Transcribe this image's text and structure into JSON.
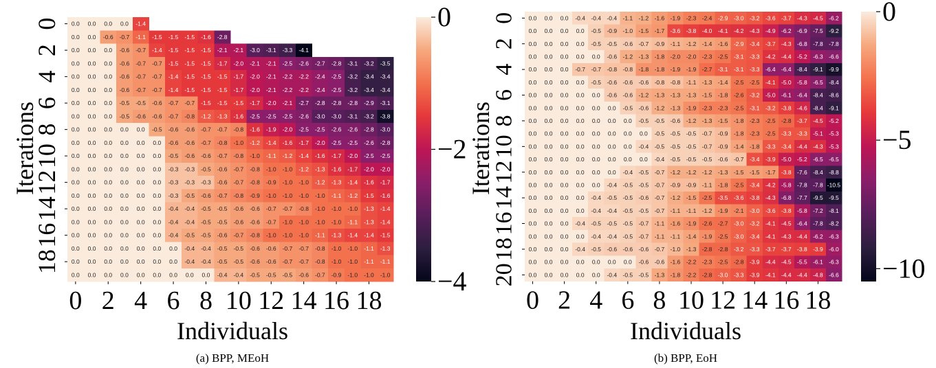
{
  "chart_data": [
    {
      "type": "heatmap",
      "caption": "(a) BPP, MEoH",
      "xlabel": "Individuals",
      "ylabel": "Iterations",
      "x_tick_labels": [
        "0",
        "2",
        "4",
        "6",
        "8",
        "10",
        "12",
        "14",
        "16",
        "18"
      ],
      "y_tick_labels": [
        "0",
        "2",
        "4",
        "6",
        "8",
        "10",
        "12",
        "14",
        "16",
        "18"
      ],
      "colorbar": {
        "min": -4.0,
        "max": 0.0,
        "ticks": [
          "0",
          "−2",
          "−4"
        ],
        "tick_values": [
          0,
          -2,
          -4
        ]
      },
      "values": [
        [
          0.0,
          0.0,
          0.0,
          0.0,
          -1.4,
          null,
          null,
          null,
          null,
          null,
          null,
          null,
          null,
          null,
          null,
          null,
          null,
          null,
          null,
          null
        ],
        [
          0.0,
          0.0,
          -0.6,
          -0.7,
          -1.1,
          -1.5,
          -1.5,
          -1.5,
          -1.6,
          -2.8,
          null,
          null,
          null,
          null,
          null,
          null,
          null,
          null,
          null,
          null
        ],
        [
          0.0,
          0.0,
          0.0,
          -0.6,
          -0.7,
          -1.4,
          -1.5,
          -1.5,
          -1.5,
          -2.1,
          -2.1,
          -3.0,
          -3.1,
          -3.3,
          -4.1,
          null,
          null,
          null,
          null,
          null
        ],
        [
          0.0,
          0.0,
          0.0,
          -0.6,
          -0.7,
          -0.7,
          -1.5,
          -1.5,
          -1.5,
          -1.7,
          -2.0,
          -2.1,
          -2.1,
          -2.5,
          -2.6,
          -2.7,
          -2.8,
          -3.1,
          -3.2,
          -3.5
        ],
        [
          0.0,
          0.0,
          0.0,
          -0.6,
          -0.7,
          -0.7,
          -1.4,
          -1.5,
          -1.5,
          -1.5,
          -1.7,
          -2.0,
          -2.1,
          -2.2,
          -2.2,
          -2.4,
          -2.5,
          -3.2,
          -3.4,
          -3.4
        ],
        [
          0.0,
          0.0,
          0.0,
          -0.6,
          -0.7,
          -0.7,
          -1.4,
          -1.5,
          -1.5,
          -1.5,
          -1.7,
          -2.0,
          -2.1,
          -2.2,
          -2.2,
          -2.4,
          -2.5,
          -3.2,
          -3.4,
          -3.4
        ],
        [
          0.0,
          0.0,
          0.0,
          -0.5,
          -0.5,
          -0.6,
          -0.7,
          -0.7,
          -1.5,
          -1.5,
          -1.5,
          -1.7,
          -2.0,
          -2.1,
          -2.7,
          -2.8,
          -2.8,
          -2.8,
          -2.9,
          -3.1
        ],
        [
          0.0,
          0.0,
          0.0,
          -0.5,
          -0.6,
          -0.6,
          -0.7,
          -0.8,
          -1.2,
          -1.3,
          -1.6,
          -2.5,
          -2.5,
          -2.5,
          -2.6,
          -3.0,
          -3.0,
          -3.1,
          -3.2,
          -3.8
        ],
        [
          0.0,
          0.0,
          0.0,
          0.0,
          0.0,
          -0.5,
          -0.6,
          -0.6,
          -0.7,
          -0.7,
          -0.8,
          -1.6,
          -1.9,
          -2.0,
          -2.5,
          -2.5,
          -2.6,
          -2.6,
          -2.8,
          -3.0
        ],
        [
          0.0,
          0.0,
          0.0,
          0.0,
          0.0,
          0.0,
          -0.6,
          -0.6,
          -0.7,
          -0.8,
          -1.0,
          -1.2,
          -1.4,
          -1.6,
          -1.7,
          -2.0,
          -2.5,
          -2.5,
          -2.6,
          -2.8
        ],
        [
          0.0,
          0.0,
          0.0,
          0.0,
          0.0,
          0.0,
          -0.5,
          -0.6,
          -0.6,
          -0.7,
          -0.8,
          -1.0,
          -1.1,
          -1.2,
          -1.4,
          -1.6,
          -1.7,
          -2.0,
          -2.5,
          -2.5
        ],
        [
          0.0,
          0.0,
          0.0,
          0.0,
          0.0,
          0.0,
          -0.3,
          -0.3,
          -0.5,
          -0.6,
          -0.7,
          -0.8,
          -1.0,
          -1.0,
          -1.2,
          -1.3,
          -1.6,
          -1.7,
          -2.0,
          -2.0
        ],
        [
          0.0,
          0.0,
          0.0,
          0.0,
          0.0,
          0.0,
          -0.3,
          -0.3,
          -0.3,
          -0.6,
          -0.7,
          -0.8,
          -0.9,
          -1.0,
          -1.0,
          -1.2,
          -1.3,
          -1.4,
          -1.6,
          -1.7
        ],
        [
          0.0,
          0.0,
          0.0,
          0.0,
          0.0,
          0.0,
          -0.3,
          -0.5,
          -0.6,
          -0.7,
          -0.8,
          -0.9,
          -1.0,
          -1.0,
          -1.0,
          -1.0,
          -1.1,
          -1.2,
          -1.5,
          -1.6
        ],
        [
          0.0,
          0.0,
          0.0,
          0.0,
          0.0,
          0.0,
          -0.4,
          -0.4,
          -0.5,
          -0.5,
          -0.6,
          -0.6,
          -0.7,
          -0.7,
          -0.8,
          -1.0,
          -1.0,
          -1.0,
          -1.3,
          -1.4
        ],
        [
          0.0,
          0.0,
          0.0,
          0.0,
          0.0,
          0.0,
          -0.4,
          -0.4,
          -0.5,
          -0.5,
          -0.6,
          -0.6,
          -0.7,
          -1.0,
          -1.0,
          -1.0,
          -1.0,
          -1.1,
          -1.3,
          -1.4
        ],
        [
          0.0,
          0.0,
          0.0,
          0.0,
          0.0,
          0.0,
          -0.4,
          -0.5,
          -0.5,
          -0.6,
          -0.7,
          -0.8,
          -1.0,
          -1.0,
          -1.0,
          -1.1,
          -1.3,
          -1.4,
          -1.4,
          -1.5
        ],
        [
          0.0,
          0.0,
          0.0,
          0.0,
          0.0,
          0.0,
          0.0,
          -0.4,
          -0.4,
          -0.5,
          -0.5,
          -0.6,
          -0.6,
          -0.7,
          -0.7,
          -0.8,
          -1.0,
          -1.0,
          -1.1,
          -1.3
        ],
        [
          0.0,
          0.0,
          0.0,
          0.0,
          0.0,
          0.0,
          0.0,
          -0.4,
          -0.4,
          -0.5,
          -0.5,
          -0.6,
          -0.6,
          -0.7,
          -0.7,
          -0.8,
          -1.0,
          -1.0,
          -1.1,
          -1.1
        ],
        [
          0.0,
          0.0,
          0.0,
          0.0,
          0.0,
          0.0,
          0.0,
          0.0,
          0.0,
          -0.4,
          -0.4,
          -0.5,
          -0.5,
          -0.5,
          -0.6,
          -0.7,
          -0.9,
          -1.0,
          -1.0,
          -1.0
        ]
      ]
    },
    {
      "type": "heatmap",
      "caption": "(b) BPP, EoH",
      "xlabel": "Individuals",
      "ylabel": "Iterations",
      "x_tick_labels": [
        "0",
        "2",
        "4",
        "6",
        "8",
        "10",
        "12",
        "14",
        "16",
        "18"
      ],
      "y_tick_labels": [
        "0",
        "2",
        "4",
        "6",
        "8",
        "10",
        "12",
        "14",
        "16",
        "18",
        "20"
      ],
      "colorbar": {
        "min": -10.5,
        "max": 0.0,
        "ticks": [
          "0",
          "−5",
          "−10"
        ],
        "tick_values": [
          0,
          -5,
          -10
        ]
      },
      "values": [
        [
          0.0,
          0.0,
          0.0,
          -0.4,
          -0.4,
          -0.4,
          -1.1,
          -1.2,
          -1.6,
          -1.9,
          -2.3,
          -2.4,
          -2.9,
          -3.0,
          -3.2,
          -3.6,
          -3.7,
          -4.3,
          -4.5,
          -6.2
        ],
        [
          0.0,
          0.0,
          0.0,
          0.0,
          -0.5,
          -0.9,
          -1.0,
          -1.5,
          -1.7,
          -3.6,
          -3.8,
          -4.0,
          -4.1,
          -4.2,
          -4.3,
          -4.9,
          -6.2,
          -6.9,
          -7.5,
          -9.2
        ],
        [
          0.0,
          0.0,
          0.0,
          0.0,
          -0.5,
          -0.5,
          -0.6,
          -0.7,
          -0.9,
          -1.1,
          -1.2,
          -1.4,
          -1.6,
          -2.9,
          -3.4,
          -3.7,
          -4.3,
          -6.8,
          -7.8,
          -7.8
        ],
        [
          0.0,
          0.0,
          0.0,
          0.0,
          0.0,
          -0.6,
          -1.2,
          -1.3,
          -1.8,
          -2.0,
          -2.0,
          -2.3,
          -2.5,
          -3.1,
          -3.3,
          -4.2,
          -4.4,
          -5.2,
          -6.3,
          -6.6
        ],
        [
          0.0,
          0.0,
          0.0,
          -0.7,
          -0.7,
          -0.8,
          -0.8,
          -1.8,
          -1.8,
          -1.9,
          -1.9,
          -2.7,
          -3.1,
          -3.1,
          -3.3,
          -6.4,
          -6.4,
          -8.4,
          -9.1,
          -9.9
        ],
        [
          0.0,
          0.0,
          0.0,
          0.0,
          -0.5,
          -0.6,
          -0.6,
          -0.6,
          -0.8,
          -0.8,
          -1.1,
          -1.3,
          -1.4,
          -2.5,
          -2.5,
          -4.1,
          -5.0,
          -5.8,
          -6.5,
          -8.4
        ],
        [
          0.0,
          0.0,
          0.0,
          0.0,
          0.0,
          -0.6,
          -0.6,
          -1.2,
          -1.3,
          -1.3,
          -1.3,
          -1.5,
          -1.8,
          -2.6,
          -3.2,
          -5.0,
          -6.1,
          -6.4,
          -8.4,
          -8.6
        ],
        [
          0.0,
          0.0,
          0.0,
          0.0,
          0.0,
          0.0,
          -0.5,
          -0.6,
          -1.2,
          -1.3,
          -1.9,
          -2.3,
          -2.3,
          -2.5,
          -3.1,
          -3.2,
          -3.8,
          -4.6,
          -8.4,
          -9.1
        ],
        [
          0.0,
          0.0,
          0.0,
          0.0,
          0.0,
          0.0,
          0.0,
          -0.5,
          -0.5,
          -0.6,
          -1.2,
          -1.3,
          -1.5,
          -1.8,
          -2.3,
          -2.5,
          -2.8,
          -3.7,
          -4.5,
          -5.2
        ],
        [
          0.0,
          0.0,
          0.0,
          0.0,
          0.0,
          0.0,
          0.0,
          0.0,
          -0.5,
          -0.5,
          -0.5,
          -0.7,
          -0.9,
          -1.8,
          -2.3,
          -2.5,
          -3.3,
          -3.3,
          -5.1,
          -5.3
        ],
        [
          0.0,
          0.0,
          0.0,
          0.0,
          0.0,
          0.0,
          0.0,
          -0.4,
          -0.5,
          -0.5,
          -0.5,
          -0.7,
          -0.9,
          -1.4,
          -1.8,
          -3.3,
          -3.4,
          -4.4,
          -4.3,
          -5.3
        ],
        [
          0.0,
          0.0,
          0.0,
          0.0,
          0.0,
          0.0,
          0.0,
          0.0,
          -0.4,
          -0.5,
          -0.5,
          -0.5,
          -0.6,
          -0.7,
          -3.4,
          -3.9,
          -5.0,
          -5.2,
          -6.5,
          -6.5
        ],
        [
          0.0,
          0.0,
          0.0,
          0.0,
          0.0,
          0.0,
          -0.4,
          -0.5,
          -0.7,
          -1.2,
          -1.2,
          -1.2,
          -1.3,
          -1.5,
          -1.5,
          -1.7,
          -3.8,
          -7.6,
          -8.4,
          -8.8
        ],
        [
          0.0,
          0.0,
          0.0,
          0.0,
          0.0,
          -0.4,
          -0.5,
          -0.5,
          -0.7,
          -0.9,
          -0.9,
          -1.1,
          -1.8,
          -2.5,
          -3.4,
          -4.2,
          -5.8,
          -7.8,
          -7.8,
          -10.5
        ],
        [
          0.0,
          0.0,
          0.0,
          0.0,
          -0.4,
          -0.5,
          -0.5,
          -0.6,
          -0.7,
          -1.2,
          -1.5,
          -2.5,
          -3.5,
          -3.6,
          -3.8,
          -4.3,
          -6.8,
          -7.7,
          -9.5,
          -9.5
        ],
        [
          0.0,
          0.0,
          0.0,
          0.0,
          -0.4,
          -0.4,
          -0.5,
          -0.5,
          -0.7,
          -1.1,
          -1.1,
          -1.2,
          -1.9,
          -2.1,
          -3.0,
          -3.6,
          -3.8,
          -5.8,
          -7.2,
          -8.1
        ],
        [
          0.0,
          0.0,
          0.0,
          -0.4,
          -0.5,
          -0.5,
          -0.5,
          -0.7,
          -1.1,
          -1.6,
          -1.9,
          -2.6,
          -2.7,
          -3.0,
          -3.2,
          -4.1,
          -4.5,
          -6.4,
          -7.8,
          -8.2
        ],
        [
          0.0,
          0.0,
          0.0,
          0.0,
          -0.4,
          -0.4,
          -0.5,
          -0.7,
          -1.1,
          -1.1,
          -1.4,
          -1.9,
          -2.5,
          -3.0,
          -3.4,
          -4.1,
          -4.3,
          -4.4,
          -6.2,
          -6.3
        ],
        [
          0.0,
          0.0,
          0.0,
          -0.4,
          -0.5,
          -0.6,
          -0.6,
          -0.6,
          -0.7,
          -1.0,
          -1.3,
          -2.8,
          -2.8,
          -3.2,
          -3.3,
          -3.7,
          -3.7,
          -3.8,
          -3.9,
          -6.0
        ],
        [
          0.0,
          0.0,
          0.0,
          0.0,
          0.0,
          0.0,
          0.0,
          -0.6,
          -0.6,
          -1.6,
          -2.2,
          -2.3,
          -2.5,
          -2.8,
          -3.9,
          -4.4,
          -4.5,
          -5.5,
          -6.1,
          -6.3
        ],
        [
          0.0,
          0.0,
          0.0,
          0.0,
          0.0,
          -0.4,
          -0.5,
          -0.5,
          -1.3,
          -1.8,
          -2.2,
          -2.8,
          -3.0,
          -3.3,
          -3.9,
          -4.1,
          -4.4,
          -4.4,
          -4.8,
          -6.6
        ]
      ]
    }
  ]
}
